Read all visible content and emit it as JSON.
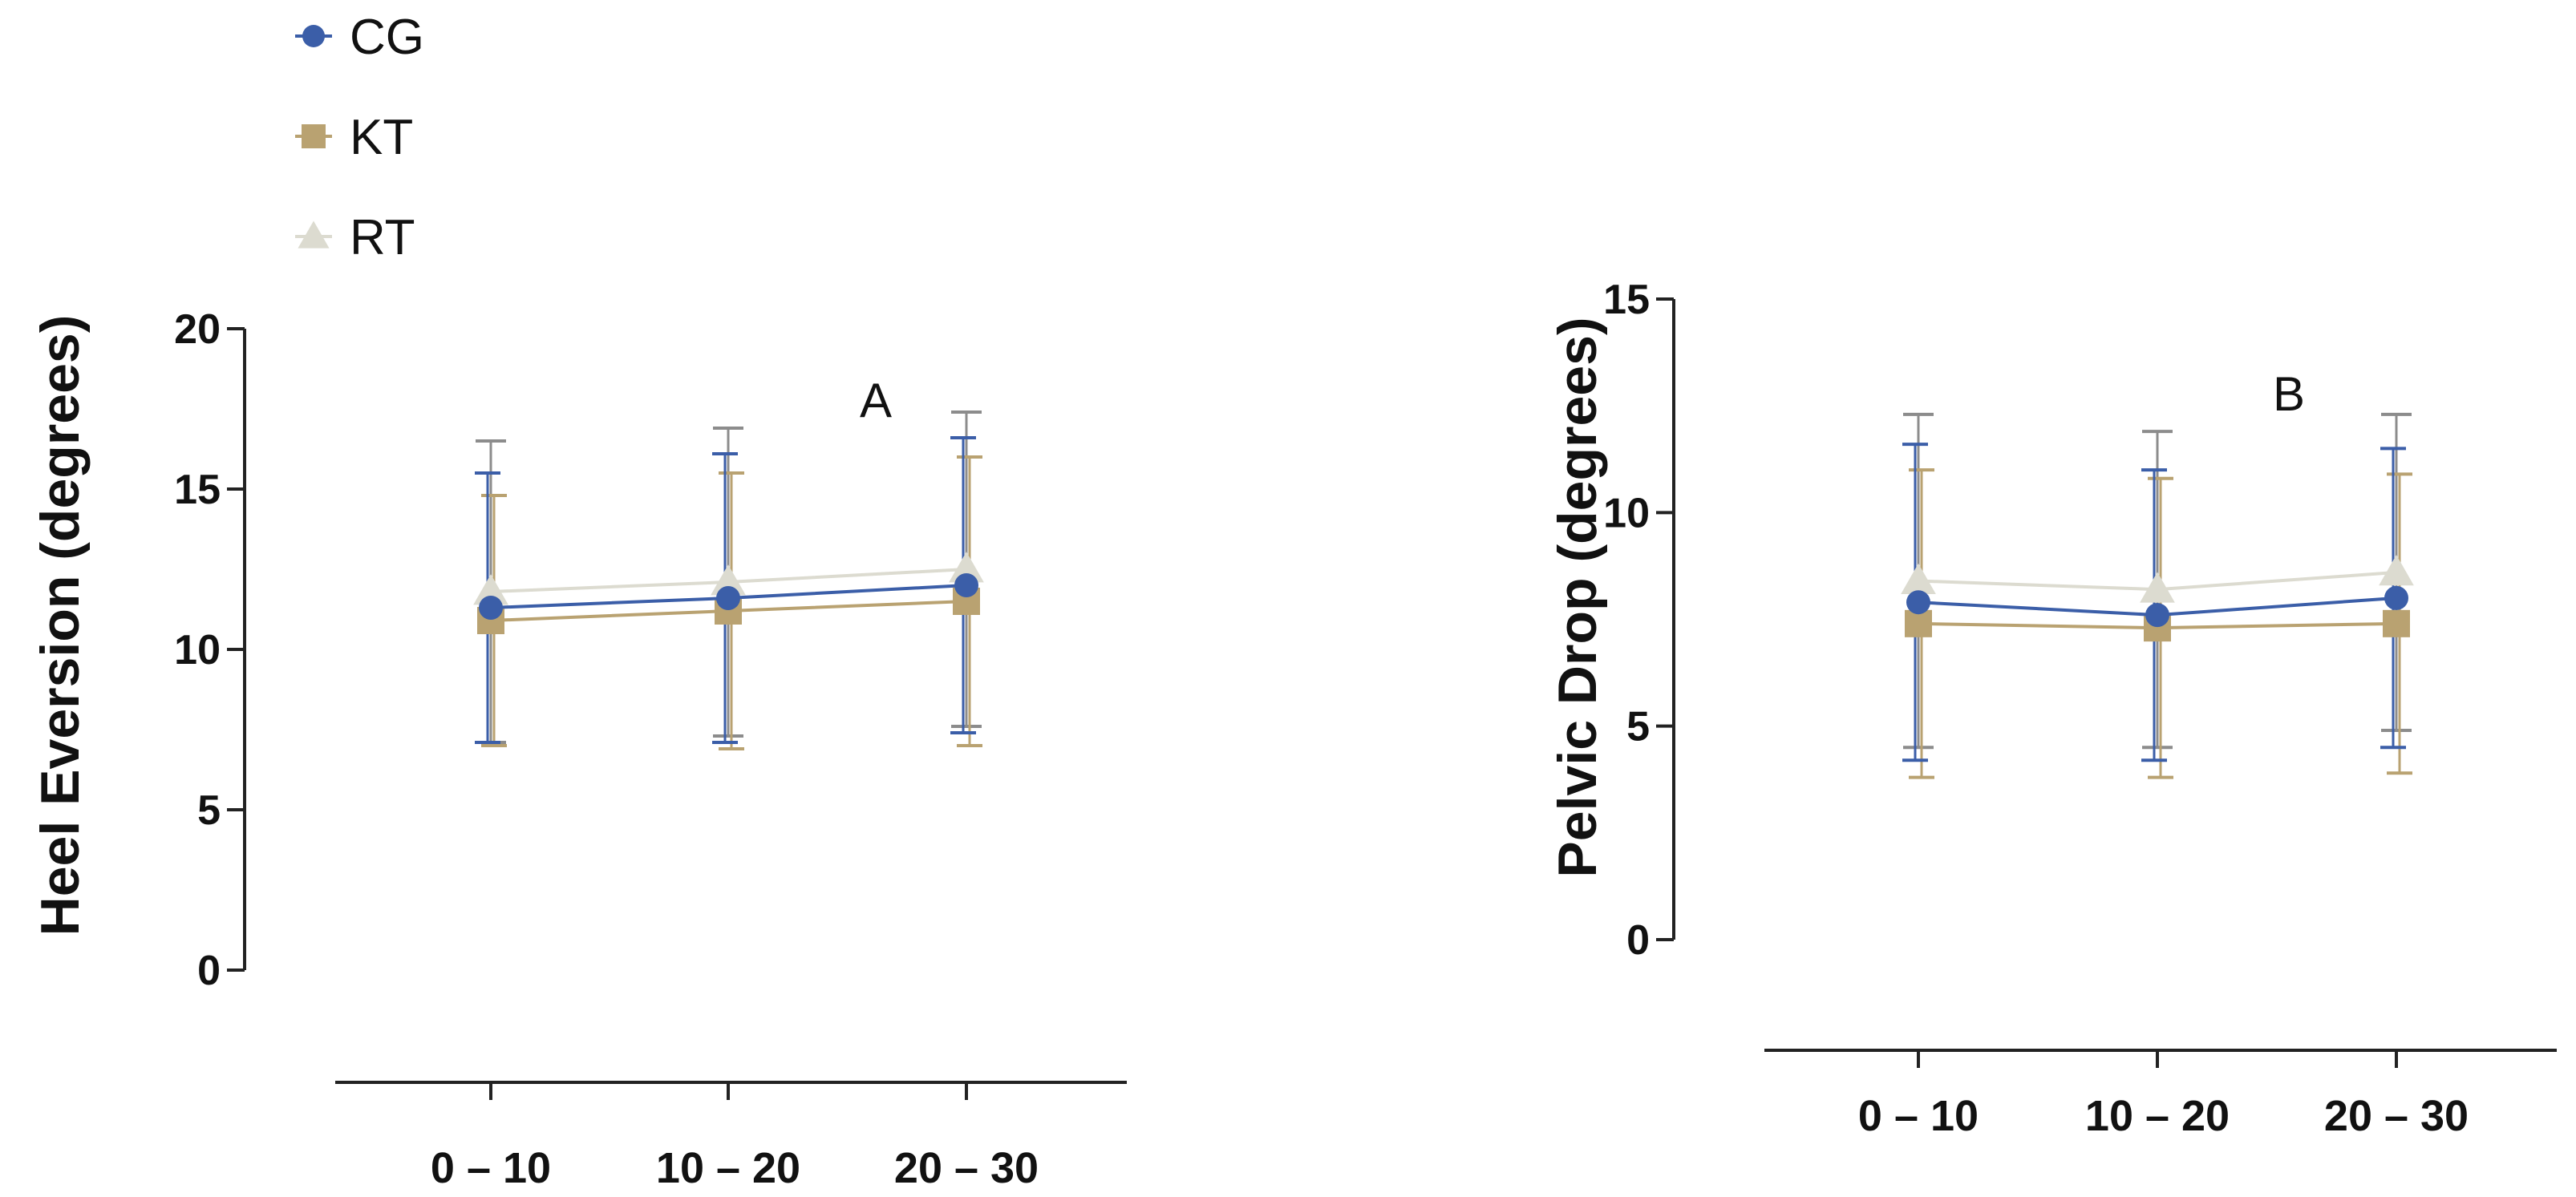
{
  "legend": [
    {
      "name": "CG",
      "color": "#3b5ea8",
      "marker": "circle"
    },
    {
      "name": "KT",
      "color": "#b9a271",
      "marker": "square"
    },
    {
      "name": "RT",
      "color": "#dcdbd0",
      "marker": "triangle"
    }
  ],
  "chart_data": [
    {
      "type": "line",
      "panel_label": "A",
      "ylabel": "Heel Eversion (degrees)",
      "xlabel": "",
      "categories": [
        "0 – 10",
        "10 – 20",
        "20 – 30"
      ],
      "ylim": [
        0,
        20
      ],
      "yticks": [
        0,
        5,
        10,
        15,
        20
      ],
      "error_bars": "SD",
      "series": [
        {
          "name": "CG",
          "values": [
            11.3,
            11.6,
            12.0
          ],
          "err": [
            4.2,
            4.5,
            4.6
          ]
        },
        {
          "name": "KT",
          "values": [
            10.9,
            11.2,
            11.5
          ],
          "err": [
            3.9,
            4.3,
            4.5
          ]
        },
        {
          "name": "RT",
          "values": [
            11.8,
            12.1,
            12.5
          ],
          "err": [
            4.7,
            4.8,
            4.9
          ]
        }
      ]
    },
    {
      "type": "line",
      "panel_label": "B",
      "ylabel": "Pelvic Drop (degrees)",
      "xlabel": "",
      "categories": [
        "0 – 10",
        "10 – 20",
        "20 – 30"
      ],
      "ylim": [
        0,
        15
      ],
      "yticks": [
        0,
        5,
        10,
        15
      ],
      "error_bars": "SD",
      "series": [
        {
          "name": "CG",
          "values": [
            7.9,
            7.6,
            8.0
          ],
          "err": [
            3.7,
            3.4,
            3.5
          ]
        },
        {
          "name": "KT",
          "values": [
            7.4,
            7.3,
            7.4
          ],
          "err": [
            3.6,
            3.5,
            3.5
          ]
        },
        {
          "name": "RT",
          "values": [
            8.4,
            8.2,
            8.6
          ],
          "err": [
            3.9,
            3.7,
            3.7
          ]
        }
      ]
    }
  ]
}
